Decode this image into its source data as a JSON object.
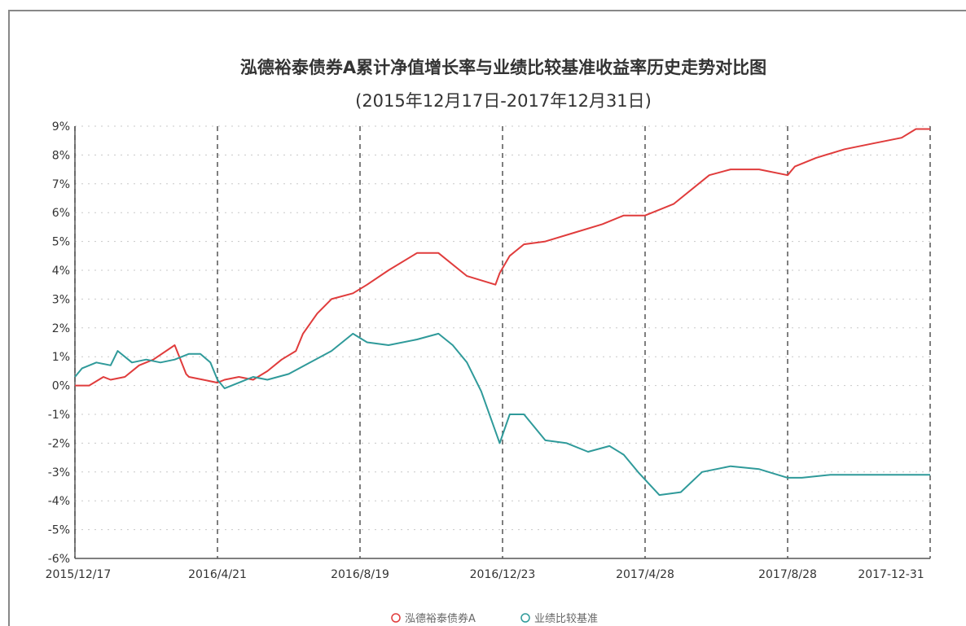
{
  "chart_data": {
    "type": "line",
    "title": "泓德裕泰债券A累计净值增长率与业绩比较基准收益率历史走势对比图",
    "subtitle": "(2015年12月17日-2017年12月31日)",
    "y_ticks": [
      "9%",
      "8%",
      "7%",
      "6%",
      "5%",
      "4%",
      "3%",
      "2%",
      "1%",
      "0%",
      "-1%",
      "-2%",
      "-3%",
      "-4%",
      "-5%",
      "-6%"
    ],
    "ylim": [
      -6,
      9
    ],
    "x_ticks": [
      "2015/12/17",
      "2016/4/21",
      "2016/8/19",
      "2016/12/23",
      "2017/4/28",
      "2017/8/28",
      "2017-12-31"
    ],
    "xlim": [
      0,
      6
    ],
    "grid": true,
    "legend_position": "bottom-center",
    "series": [
      {
        "name": "泓德裕泰债券A",
        "color": "#e03c3c",
        "x": [
          0,
          0.1,
          0.2,
          0.25,
          0.35,
          0.45,
          0.55,
          0.7,
          0.78,
          0.8,
          0.9,
          1.0,
          1.05,
          1.15,
          1.25,
          1.35,
          1.45,
          1.55,
          1.6,
          1.7,
          1.8,
          1.95,
          2.05,
          2.2,
          2.4,
          2.55,
          2.75,
          2.95,
          2.98,
          3.05,
          3.15,
          3.3,
          3.5,
          3.7,
          3.85,
          4.0,
          4.2,
          4.45,
          4.6,
          4.8,
          5.0,
          5.05,
          5.2,
          5.4,
          5.6,
          5.8,
          5.9,
          6.0
        ],
        "y": [
          0.0,
          0.0,
          0.3,
          0.2,
          0.3,
          0.7,
          0.9,
          1.4,
          0.4,
          0.3,
          0.2,
          0.1,
          0.2,
          0.3,
          0.2,
          0.5,
          0.9,
          1.2,
          1.8,
          2.5,
          3.0,
          3.2,
          3.5,
          4.0,
          4.6,
          4.6,
          3.8,
          3.5,
          3.9,
          4.5,
          4.9,
          5.0,
          5.3,
          5.6,
          5.9,
          5.9,
          6.3,
          7.3,
          7.5,
          7.5,
          7.3,
          7.6,
          7.9,
          8.2,
          8.4,
          8.6,
          8.9,
          8.9
        ]
      },
      {
        "name": "业绩比较基准",
        "color": "#2f9a9a",
        "x": [
          0,
          0.05,
          0.15,
          0.25,
          0.3,
          0.4,
          0.5,
          0.6,
          0.7,
          0.8,
          0.88,
          0.95,
          1.0,
          1.05,
          1.15,
          1.25,
          1.35,
          1.5,
          1.65,
          1.8,
          1.95,
          2.05,
          2.2,
          2.4,
          2.55,
          2.65,
          2.75,
          2.85,
          2.98,
          3.05,
          3.15,
          3.3,
          3.45,
          3.6,
          3.75,
          3.85,
          3.95,
          4.1,
          4.25,
          4.4,
          4.6,
          4.8,
          5.0,
          5.1,
          5.3,
          5.6,
          6.0
        ],
        "y": [
          0.3,
          0.6,
          0.8,
          0.7,
          1.2,
          0.8,
          0.9,
          0.8,
          0.9,
          1.1,
          1.1,
          0.8,
          0.2,
          -0.1,
          0.1,
          0.3,
          0.2,
          0.4,
          0.8,
          1.2,
          1.8,
          1.5,
          1.4,
          1.6,
          1.8,
          1.4,
          0.8,
          -0.2,
          -2.0,
          -1.0,
          -1.0,
          -1.9,
          -2.0,
          -2.3,
          -2.1,
          -2.4,
          -3.0,
          -3.8,
          -3.7,
          -3.0,
          -2.8,
          -2.9,
          -3.2,
          -3.2,
          -3.1,
          -3.1,
          -3.1
        ]
      }
    ]
  }
}
